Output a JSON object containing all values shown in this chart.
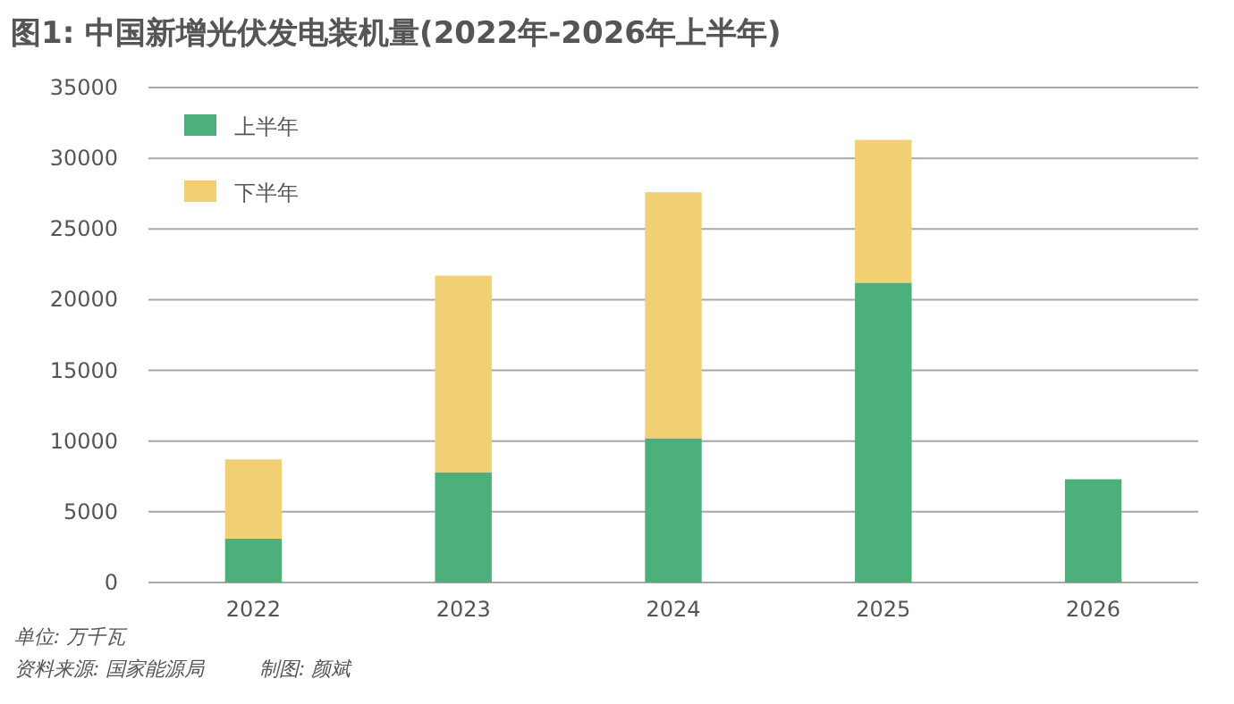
{
  "chart_data": {
    "type": "bar",
    "stacked": true,
    "title": "图1: 中国新增光伏发电装机量(2022年-2026年上半年)",
    "categories": [
      "2022",
      "2023",
      "2024",
      "2025",
      "2026"
    ],
    "series": [
      {
        "name": "上半年",
        "color": "#4cb07a",
        "values": [
          3100,
          7800,
          10200,
          21200,
          7300
        ]
      },
      {
        "name": "下半年",
        "color": "#f0d073",
        "values": [
          5600,
          13900,
          17400,
          10100,
          null
        ]
      }
    ],
    "ylim": [
      0,
      35000
    ],
    "yticks": [
      0,
      5000,
      10000,
      15000,
      20000,
      25000,
      30000,
      35000
    ],
    "grid": "y",
    "legend": "top left",
    "annotations": [
      "单位: 万千瓦",
      "资料来源: 国家能源局",
      "制图: 颜斌"
    ]
  }
}
